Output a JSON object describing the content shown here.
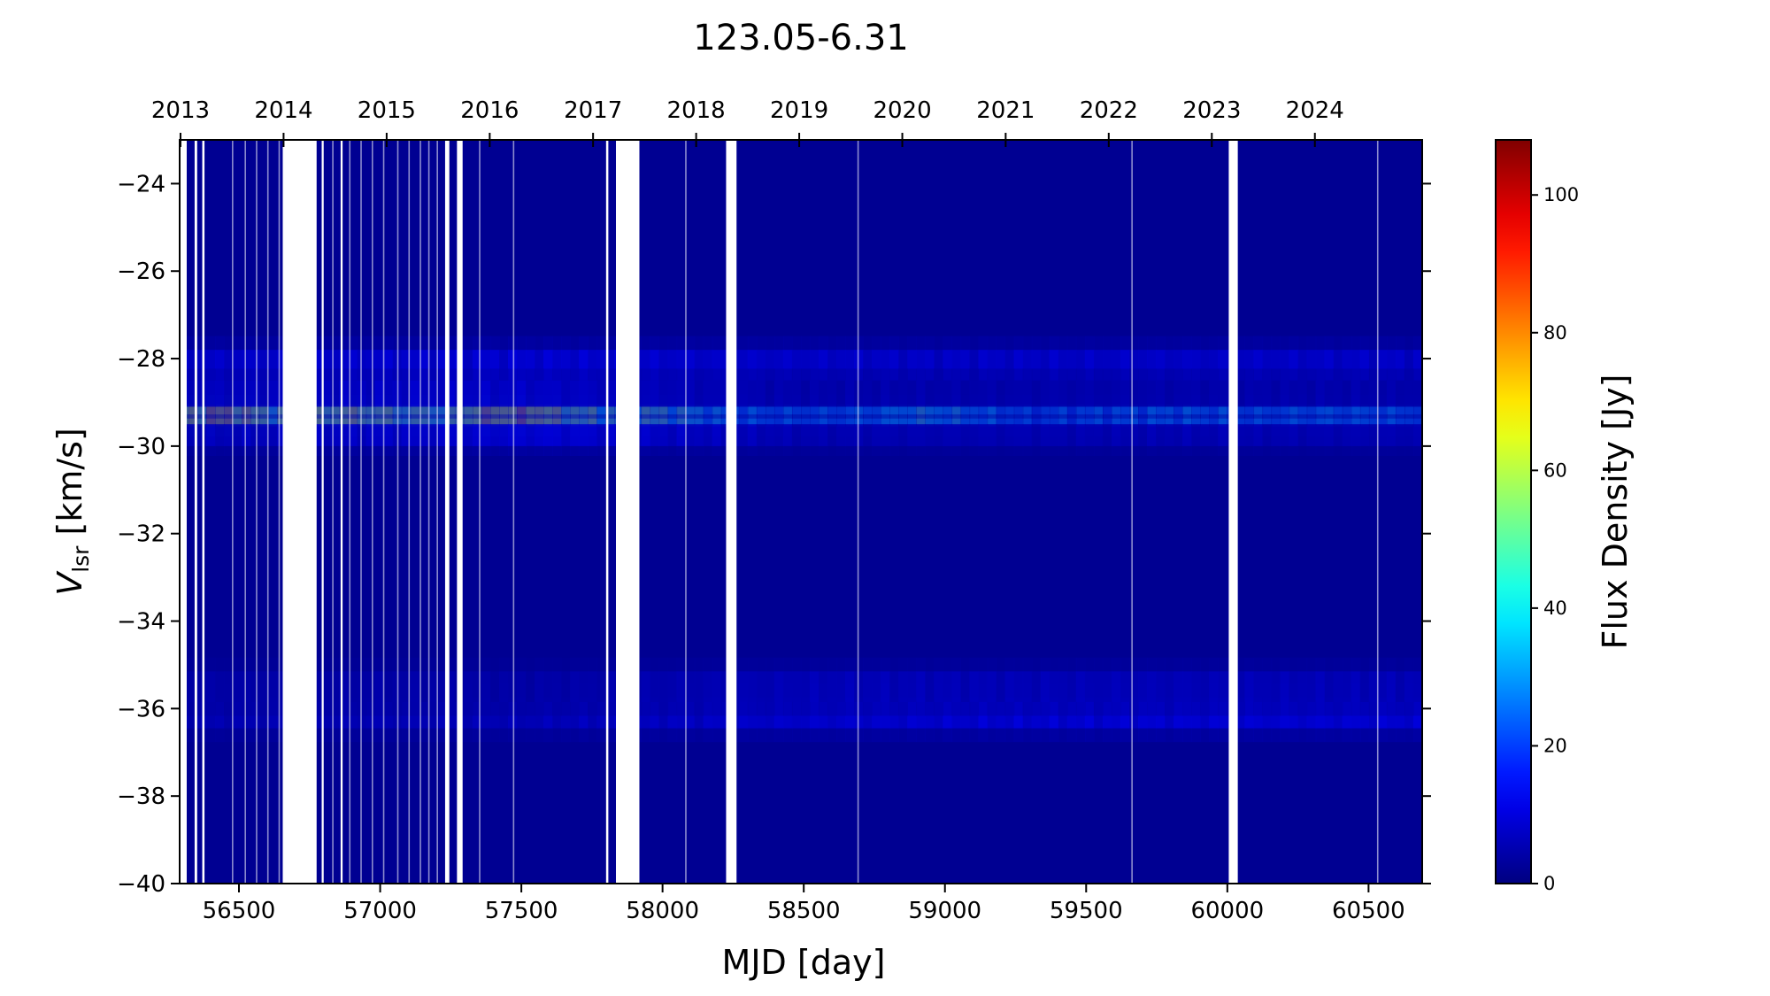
{
  "chart_data": {
    "type": "heatmap",
    "title": "123.05-6.31",
    "xlabel": "MJD [day]",
    "ylabel_main": "V",
    "ylabel_sub": "lsr",
    "ylabel_unit": " [km/s]",
    "xlim": [
      56290,
      60690
    ],
    "ylim": [
      -40,
      -23
    ],
    "x_ticks": [
      56500,
      57000,
      57500,
      58000,
      58500,
      59000,
      59500,
      60000,
      60500
    ],
    "y_ticks": [
      -24,
      -26,
      -28,
      -30,
      -32,
      -34,
      -36,
      -38,
      -40
    ],
    "year_ticks": [
      {
        "label": "2013",
        "mjd": 56293
      },
      {
        "label": "2014",
        "mjd": 56658
      },
      {
        "label": "2015",
        "mjd": 57023
      },
      {
        "label": "2016",
        "mjd": 57388
      },
      {
        "label": "2017",
        "mjd": 57754
      },
      {
        "label": "2018",
        "mjd": 58119
      },
      {
        "label": "2019",
        "mjd": 58484
      },
      {
        "label": "2020",
        "mjd": 58849
      },
      {
        "label": "2021",
        "mjd": 59215
      },
      {
        "label": "2022",
        "mjd": 59580
      },
      {
        "label": "2023",
        "mjd": 59945
      },
      {
        "label": "2024",
        "mjd": 60310
      }
    ],
    "colorbar": {
      "label": "Flux Density [Jy]",
      "colormap": "jet",
      "range": [
        0,
        108
      ],
      "ticks": [
        0,
        20,
        40,
        60,
        80,
        100
      ]
    },
    "background_value": 2,
    "data_gaps_mjd": [
      [
        56290,
        56315
      ],
      [
        56343,
        56352
      ],
      [
        56370,
        56378
      ],
      [
        56655,
        56775
      ],
      [
        56793,
        56800
      ],
      [
        56860,
        56867
      ],
      [
        57230,
        57245
      ],
      [
        57272,
        57292
      ],
      [
        57800,
        57808
      ],
      [
        57835,
        57918
      ],
      [
        58225,
        58262
      ],
      [
        60005,
        60037
      ]
    ],
    "thin_gaps_mjd": [
      56475,
      56520,
      56560,
      56600,
      56640,
      56830,
      56890,
      56930,
      56970,
      57010,
      57060,
      57100,
      57140,
      57170,
      57200,
      57350,
      57470,
      58080,
      58690,
      59660,
      60530
    ],
    "emission_features": [
      {
        "velocity": -29.3,
        "width": 0.25,
        "peak_flux": [
          {
            "mjd": 56320,
            "flux": 78
          },
          {
            "mjd": 56400,
            "flux": 95
          },
          {
            "mjd": 56460,
            "flux": 100
          },
          {
            "mjd": 56550,
            "flux": 78
          },
          {
            "mjd": 56640,
            "flux": 65
          },
          {
            "mjd": 56800,
            "flux": 70
          },
          {
            "mjd": 56870,
            "flux": 82
          },
          {
            "mjd": 56950,
            "flux": 76
          },
          {
            "mjd": 57050,
            "flux": 68
          },
          {
            "mjd": 57150,
            "flux": 66
          },
          {
            "mjd": 57250,
            "flux": 65
          },
          {
            "mjd": 57320,
            "flux": 82
          },
          {
            "mjd": 57400,
            "flux": 96
          },
          {
            "mjd": 57450,
            "flux": 92
          },
          {
            "mjd": 57540,
            "flux": 100
          },
          {
            "mjd": 57600,
            "flux": 82
          },
          {
            "mjd": 57700,
            "flux": 68
          },
          {
            "mjd": 57800,
            "flux": 62
          },
          {
            "mjd": 57930,
            "flux": 64
          },
          {
            "mjd": 58050,
            "flux": 58
          },
          {
            "mjd": 58200,
            "flux": 45
          },
          {
            "mjd": 58400,
            "flux": 40
          },
          {
            "mjd": 58600,
            "flux": 40
          },
          {
            "mjd": 58800,
            "flux": 46
          },
          {
            "mjd": 58900,
            "flux": 54
          },
          {
            "mjd": 59050,
            "flux": 48
          },
          {
            "mjd": 59300,
            "flux": 36
          },
          {
            "mjd": 59500,
            "flux": 40
          },
          {
            "mjd": 59800,
            "flux": 44
          },
          {
            "mjd": 59980,
            "flux": 42
          },
          {
            "mjd": 60100,
            "flux": 40
          },
          {
            "mjd": 60350,
            "flux": 44
          },
          {
            "mjd": 60690,
            "flux": 40
          }
        ]
      },
      {
        "velocity": -28.15,
        "width": 0.35,
        "peak_flux": [
          {
            "mjd": 56300,
            "flux": 12
          },
          {
            "mjd": 57500,
            "flux": 14
          },
          {
            "mjd": 58500,
            "flux": 12
          },
          {
            "mjd": 60690,
            "flux": 12
          }
        ]
      },
      {
        "velocity": -28.8,
        "width": 0.3,
        "peak_flux": [
          {
            "mjd": 56300,
            "flux": 10
          },
          {
            "mjd": 57500,
            "flux": 12
          },
          {
            "mjd": 58500,
            "flux": 7
          },
          {
            "mjd": 60690,
            "flux": 7
          }
        ]
      },
      {
        "velocity": -29.75,
        "width": 0.25,
        "peak_flux": [
          {
            "mjd": 56300,
            "flux": 9
          },
          {
            "mjd": 57600,
            "flux": 14
          },
          {
            "mjd": 58500,
            "flux": 8
          },
          {
            "mjd": 60690,
            "flux": 8
          }
        ]
      },
      {
        "velocity": -36.1,
        "width": 0.35,
        "peak_flux": [
          {
            "mjd": 56300,
            "flux": 8
          },
          {
            "mjd": 57500,
            "flux": 9
          },
          {
            "mjd": 58500,
            "flux": 13
          },
          {
            "mjd": 59500,
            "flux": 14
          },
          {
            "mjd": 60690,
            "flux": 14
          }
        ]
      },
      {
        "velocity": -35.5,
        "width": 0.35,
        "peak_flux": [
          {
            "mjd": 56300,
            "flux": 6
          },
          {
            "mjd": 57500,
            "flux": 6
          },
          {
            "mjd": 58500,
            "flux": 9
          },
          {
            "mjd": 60690,
            "flux": 9
          }
        ]
      }
    ]
  }
}
